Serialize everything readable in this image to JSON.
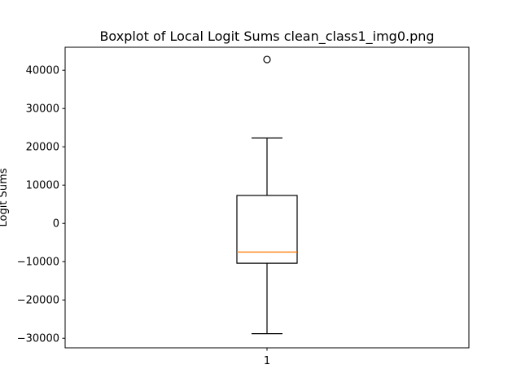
{
  "chart_data": {
    "type": "boxplot",
    "title": "Boxplot of Local Logit Sums clean_class1_img0.png",
    "xlabel": "",
    "ylabel": "Logit Sums",
    "categories": [
      "1"
    ],
    "ylim": [
      -32500,
      46000
    ],
    "yticks": [
      -30000,
      -20000,
      -10000,
      0,
      10000,
      20000,
      30000,
      40000
    ],
    "ytick_labels": [
      "−30000",
      "−20000",
      "−10000",
      "0",
      "10000",
      "20000",
      "30000",
      "40000"
    ],
    "boxes": [
      {
        "category": "1",
        "whisker_low": -28800,
        "q1": -10400,
        "median": -7500,
        "q3": 7300,
        "whisker_high": 22300,
        "outliers": [
          42800
        ]
      }
    ],
    "grid": false,
    "legend": "none",
    "colors": {
      "box": "#000000",
      "median": "#ff7f0e",
      "background": "#ffffff"
    }
  }
}
